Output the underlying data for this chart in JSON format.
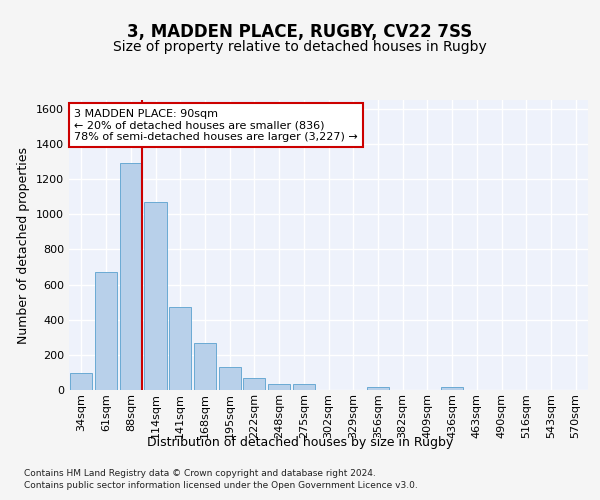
{
  "title": "3, MADDEN PLACE, RUGBY, CV22 7SS",
  "subtitle": "Size of property relative to detached houses in Rugby",
  "xlabel": "Distribution of detached houses by size in Rugby",
  "ylabel": "Number of detached properties",
  "categories": [
    "34sqm",
    "61sqm",
    "88sqm",
    "114sqm",
    "141sqm",
    "168sqm",
    "195sqm",
    "222sqm",
    "248sqm",
    "275sqm",
    "302sqm",
    "329sqm",
    "356sqm",
    "382sqm",
    "409sqm",
    "436sqm",
    "463sqm",
    "490sqm",
    "516sqm",
    "543sqm",
    "570sqm"
  ],
  "values": [
    95,
    670,
    1290,
    1070,
    470,
    265,
    130,
    70,
    35,
    35,
    2,
    2,
    15,
    2,
    2,
    15,
    2,
    0,
    0,
    0,
    0
  ],
  "bar_color": "#b8d0ea",
  "bar_edge_color": "#6aaad4",
  "vline_x_index": 2,
  "vline_color": "#cc0000",
  "annotation_text": "3 MADDEN PLACE: 90sqm\n← 20% of detached houses are smaller (836)\n78% of semi-detached houses are larger (3,227) →",
  "annotation_box_color": "#ffffff",
  "annotation_box_edge": "#cc0000",
  "ylim": [
    0,
    1650
  ],
  "yticks": [
    0,
    200,
    400,
    600,
    800,
    1000,
    1200,
    1400,
    1600
  ],
  "footer_line1": "Contains HM Land Registry data © Crown copyright and database right 2024.",
  "footer_line2": "Contains public sector information licensed under the Open Government Licence v3.0.",
  "background_color": "#eef2fb",
  "plot_bg_color": "#eef2fb",
  "grid_color": "#ffffff",
  "fig_bg_color": "#f5f5f5",
  "title_fontsize": 12,
  "subtitle_fontsize": 10,
  "axis_label_fontsize": 9,
  "tick_fontsize": 8,
  "footer_fontsize": 6.5,
  "annotation_fontsize": 8
}
